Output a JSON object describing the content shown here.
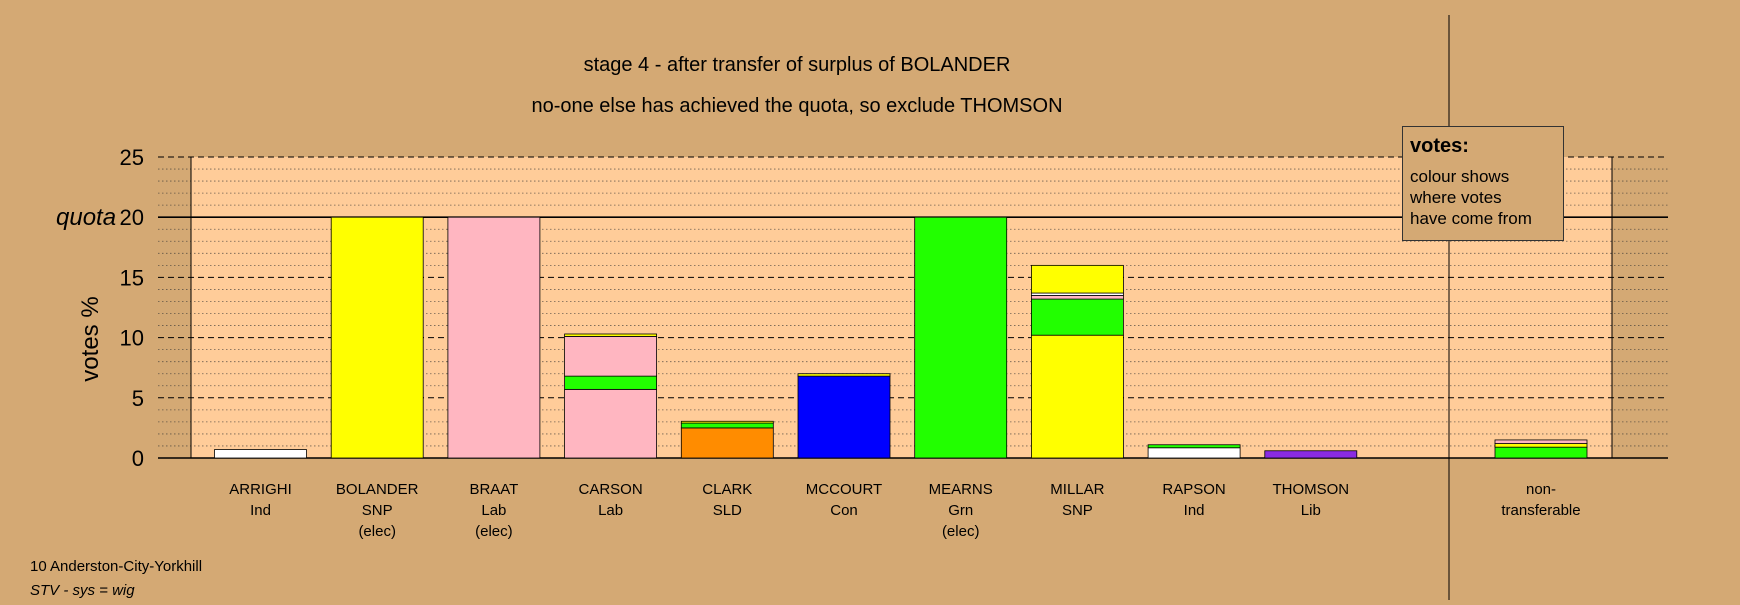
{
  "chart_data": {
    "type": "bar",
    "stacked": true,
    "title": "stage 4 - after transfer of surplus of BOLANDER",
    "subtitle": "no-one else has achieved the quota, so exclude THOMSON",
    "ylabel": "votes %",
    "ylim": [
      0,
      25
    ],
    "yticks": [
      0,
      5,
      10,
      15,
      20,
      25
    ],
    "quota": 20,
    "quota_label": "quota",
    "grid": true,
    "categories": [
      {
        "name": "ARRIGHI",
        "party": "Ind",
        "status": ""
      },
      {
        "name": "BOLANDER",
        "party": "SNP",
        "status": "(elec)"
      },
      {
        "name": "BRAAT",
        "party": "Lab",
        "status": "(elec)"
      },
      {
        "name": "CARSON",
        "party": "Lab",
        "status": ""
      },
      {
        "name": "CLARK",
        "party": "SLD",
        "status": ""
      },
      {
        "name": "MCCOURT",
        "party": "Con",
        "status": ""
      },
      {
        "name": "MEARNS",
        "party": "Grn",
        "status": "(elec)"
      },
      {
        "name": "MILLAR",
        "party": "SNP",
        "status": ""
      },
      {
        "name": "RAPSON",
        "party": "Ind",
        "status": ""
      },
      {
        "name": "THOMSON",
        "party": "Lib",
        "status": ""
      }
    ],
    "nontransferable_label": [
      "non-",
      "transferable"
    ],
    "stacks": [
      [
        {
          "v": 0.7,
          "c": "#ffffff"
        }
      ],
      [
        {
          "v": 20,
          "c": "#ffff00"
        }
      ],
      [
        {
          "v": 20,
          "c": "#ffb6c1"
        }
      ],
      [
        {
          "v": 5.7,
          "c": "#ffb6c1"
        },
        {
          "v": 1.1,
          "c": "#22ff00"
        },
        {
          "v": 3.3,
          "c": "#ffb6c1"
        },
        {
          "v": 0.2,
          "c": "#ffff00"
        }
      ],
      [
        {
          "v": 2.5,
          "c": "#ff8c00"
        },
        {
          "v": 0.4,
          "c": "#22ff00"
        },
        {
          "v": 0.15,
          "c": "#ffff00"
        }
      ],
      [
        {
          "v": 6.8,
          "c": "#0000ff"
        },
        {
          "v": 0.2,
          "c": "#ffff00"
        }
      ],
      [
        {
          "v": 20,
          "c": "#22ff00"
        }
      ],
      [
        {
          "v": 10.2,
          "c": "#ffff00"
        },
        {
          "v": 3.0,
          "c": "#22ff00"
        },
        {
          "v": 0.3,
          "c": "#ffb6c1"
        },
        {
          "v": 0.2,
          "c": "#ffffff"
        },
        {
          "v": 2.3,
          "c": "#ffff00"
        }
      ],
      [
        {
          "v": 0.85,
          "c": "#ffffff"
        },
        {
          "v": 0.25,
          "c": "#22ff00"
        }
      ],
      [
        {
          "v": 0.6,
          "c": "#8a2be2"
        }
      ]
    ],
    "nontransferable_stack": [
      {
        "v": 0.9,
        "c": "#22ff00"
      },
      {
        "v": 0.3,
        "c": "#ffff00"
      },
      {
        "v": 0.3,
        "c": "#ffb6c1"
      }
    ]
  },
  "legend": {
    "title": "votes:",
    "lines": [
      "colour shows",
      "where votes",
      "have come from"
    ]
  },
  "footer": {
    "ward": "10 Anderston-City-Yorkhill",
    "system": "STV - sys = wig"
  },
  "colors": {
    "background": "#d4a974",
    "plot_area": "#ffcc99",
    "plot_area_shaded": "#d4a974"
  }
}
